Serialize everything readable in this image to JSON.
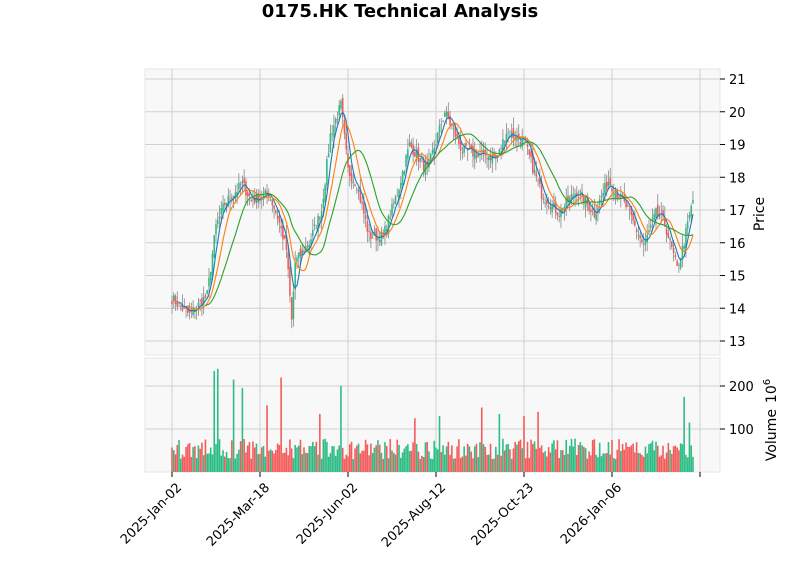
{
  "chart_data": {
    "type": "candlestick",
    "title": "0175.HK Technical Analysis",
    "ylabel": "Price",
    "volume_label": "Volume",
    "volume_exponent": "10",
    "volume_exponent_power": "6",
    "ylim": [
      12.6,
      21.3
    ],
    "volume_ylim": [
      0,
      250
    ],
    "y_ticks": [
      "13",
      "14",
      "15",
      "16",
      "17",
      "18",
      "19",
      "20",
      "21"
    ],
    "volume_ticks": [
      "100",
      "200"
    ],
    "x_tick_labels": [
      "2025-Jan-02",
      "2025-Mar-18",
      "2025-Jun-02",
      "2025-Aug-12",
      "2025-Oct-23",
      "2026-Jan-06",
      ""
    ],
    "x_tick_days": [
      0,
      50,
      100,
      150,
      200,
      250,
      300
    ],
    "close_keypoints_day_price": [
      [
        0,
        14.3
      ],
      [
        10,
        13.8
      ],
      [
        20,
        14.4
      ],
      [
        25,
        16.5
      ],
      [
        30,
        17.2
      ],
      [
        40,
        17.8
      ],
      [
        45,
        17.3
      ],
      [
        55,
        17.5
      ],
      [
        60,
        16.8
      ],
      [
        65,
        15.8
      ],
      [
        68,
        13.6
      ],
      [
        70,
        15.4
      ],
      [
        78,
        16.0
      ],
      [
        85,
        17.0
      ],
      [
        90,
        19.3
      ],
      [
        96,
        20.2
      ],
      [
        100,
        18.2
      ],
      [
        105,
        17.8
      ],
      [
        112,
        16.2
      ],
      [
        120,
        16.2
      ],
      [
        128,
        17.5
      ],
      [
        135,
        19.0
      ],
      [
        145,
        18.2
      ],
      [
        155,
        20.0
      ],
      [
        165,
        18.8
      ],
      [
        175,
        18.7
      ],
      [
        185,
        18.6
      ],
      [
        190,
        19.4
      ],
      [
        200,
        19.1
      ],
      [
        210,
        17.5
      ],
      [
        220,
        16.9
      ],
      [
        230,
        17.6
      ],
      [
        240,
        16.9
      ],
      [
        248,
        17.9
      ],
      [
        258,
        17.1
      ],
      [
        268,
        15.9
      ],
      [
        275,
        16.9
      ],
      [
        280,
        16.6
      ],
      [
        287,
        15.2
      ],
      [
        290,
        15.8
      ],
      [
        296,
        17.3
      ]
    ],
    "volume_spikes_day_millions": [
      [
        24,
        235
      ],
      [
        26,
        240
      ],
      [
        35,
        215
      ],
      [
        40,
        195
      ],
      [
        54,
        155
      ],
      [
        62,
        220
      ],
      [
        84,
        135
      ],
      [
        96,
        200
      ],
      [
        138,
        125
      ],
      [
        152,
        130
      ],
      [
        176,
        150
      ],
      [
        186,
        135
      ],
      [
        200,
        130
      ],
      [
        208,
        140
      ],
      [
        291,
        175
      ],
      [
        294,
        115
      ]
    ],
    "volume_baseline_millions": 60,
    "moving_averages": [
      {
        "name": "MA5",
        "color": "#1f77b4",
        "window": 5
      },
      {
        "name": "MA10",
        "color": "#ff7f0e",
        "window": 10
      },
      {
        "name": "MA20",
        "color": "#2ca02c",
        "window": 20
      }
    ],
    "colors": {
      "up": "#2ebd85",
      "down": "#f45c5c",
      "wick": "#888888",
      "grid": "#d0d0d0",
      "panel": "#f8f8f8"
    }
  }
}
